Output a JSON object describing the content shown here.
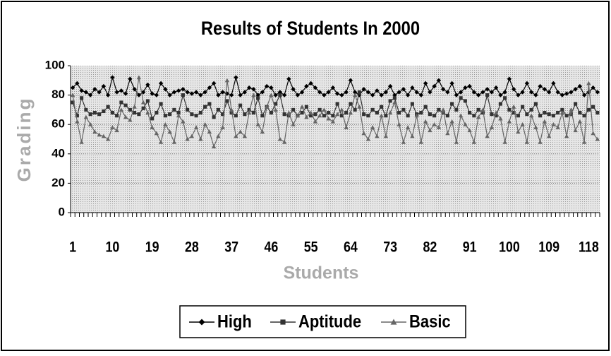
{
  "chart_data": {
    "type": "line",
    "title": "Results of Students In 2000",
    "x_label": "Students",
    "y_label": "Grading",
    "categories": [
      1,
      null,
      null,
      null,
      null,
      null,
      null,
      null,
      null,
      10,
      null,
      null,
      null,
      null,
      null,
      null,
      null,
      null,
      19,
      null,
      null,
      null,
      null,
      null,
      null,
      null,
      null,
      28,
      null,
      null,
      null,
      null,
      null,
      null,
      null,
      null,
      37,
      null,
      null,
      null,
      null,
      null,
      null,
      null,
      null,
      46,
      null,
      null,
      null,
      null,
      null,
      null,
      null,
      null,
      55,
      null,
      null,
      null,
      null,
      null,
      null,
      null,
      null,
      64,
      null,
      null,
      null,
      null,
      null,
      null,
      null,
      null,
      73,
      null,
      null,
      null,
      null,
      null,
      null,
      null,
      null,
      82,
      null,
      null,
      null,
      null,
      null,
      null,
      null,
      null,
      91,
      null,
      null,
      null,
      null,
      null,
      null,
      null,
      null,
      100,
      null,
      null,
      null,
      null,
      null,
      null,
      null,
      null,
      109,
      null,
      null,
      null,
      null,
      null,
      null,
      null,
      null,
      118,
      null,
      null
    ],
    "series": [
      {
        "name": "High",
        "color": "#000000",
        "marker": "diamond",
        "values": [
          85,
          88,
          83,
          82,
          80,
          84,
          82,
          86,
          80,
          92,
          82,
          83,
          81,
          91,
          84,
          80,
          82,
          87,
          81,
          80,
          88,
          84,
          80,
          82,
          83,
          84,
          82,
          81,
          82,
          80,
          82,
          85,
          88,
          80,
          82,
          81,
          80,
          92,
          80,
          82,
          85,
          84,
          80,
          82,
          86,
          85,
          80,
          82,
          80,
          91,
          84,
          80,
          82,
          86,
          88,
          85,
          82,
          80,
          82,
          85,
          81,
          80,
          82,
          90,
          82,
          80,
          84,
          82,
          80,
          83,
          80,
          82,
          86,
          80,
          82,
          84,
          80,
          85,
          82,
          80,
          88,
          82,
          86,
          90,
          84,
          82,
          88,
          80,
          82,
          85,
          86,
          82,
          80,
          82,
          84,
          82,
          85,
          80,
          82,
          91,
          84,
          80,
          82,
          88,
          82,
          80,
          86,
          84,
          82,
          88,
          82,
          80,
          81,
          82,
          84,
          86,
          80,
          82,
          85,
          82
        ]
      },
      {
        "name": "Aptitude",
        "color": "#333333",
        "marker": "square",
        "values": [
          75,
          66,
          78,
          70,
          67,
          68,
          67,
          69,
          72,
          68,
          66,
          75,
          73,
          70,
          68,
          67,
          71,
          76,
          64,
          68,
          74,
          66,
          67,
          70,
          68,
          80,
          70,
          67,
          66,
          68,
          72,
          74,
          65,
          70,
          67,
          76,
          68,
          66,
          73,
          67,
          70,
          68,
          78,
          66,
          72,
          68,
          74,
          80,
          67,
          66,
          70,
          66,
          68,
          72,
          66,
          67,
          70,
          66,
          68,
          66,
          74,
          66,
          68,
          74,
          70,
          82,
          67,
          66,
          70,
          68,
          72,
          66,
          76,
          78,
          68,
          70,
          66,
          74,
          67,
          68,
          72,
          67,
          66,
          70,
          68,
          66,
          74,
          70,
          78,
          76,
          68,
          66,
          70,
          68,
          80,
          67,
          66,
          74,
          78,
          70,
          68,
          66,
          72,
          67,
          70,
          74,
          66,
          68,
          67,
          66,
          68,
          70,
          66,
          67,
          74,
          68,
          66,
          70,
          72,
          68
        ]
      },
      {
        "name": "Basic",
        "color": "#666666",
        "marker": "triangle",
        "values": [
          80,
          62,
          48,
          65,
          60,
          55,
          53,
          52,
          50,
          58,
          56,
          70,
          65,
          63,
          72,
          92,
          75,
          68,
          58,
          54,
          48,
          60,
          55,
          48,
          66,
          62,
          50,
          52,
          58,
          50,
          60,
          55,
          45,
          52,
          58,
          90,
          70,
          52,
          55,
          52,
          68,
          80,
          60,
          55,
          72,
          80,
          70,
          50,
          48,
          68,
          60,
          66,
          72,
          65,
          68,
          62,
          66,
          70,
          64,
          62,
          67,
          70,
          58,
          68,
          80,
          72,
          54,
          50,
          58,
          52,
          66,
          52,
          68,
          75,
          60,
          48,
          58,
          52,
          66,
          48,
          62,
          56,
          60,
          58,
          70,
          54,
          62,
          48,
          66,
          60,
          56,
          48,
          65,
          70,
          52,
          58,
          68,
          64,
          48,
          62,
          72,
          55,
          60,
          48,
          66,
          58,
          48,
          62,
          52,
          60,
          58,
          68,
          52,
          70,
          56,
          62,
          48,
          88,
          54,
          50
        ]
      }
    ],
    "ylim": [
      0,
      100
    ],
    "yticks": [
      0,
      20,
      40,
      60,
      80,
      100
    ],
    "grid": true,
    "legend": "bottom"
  }
}
